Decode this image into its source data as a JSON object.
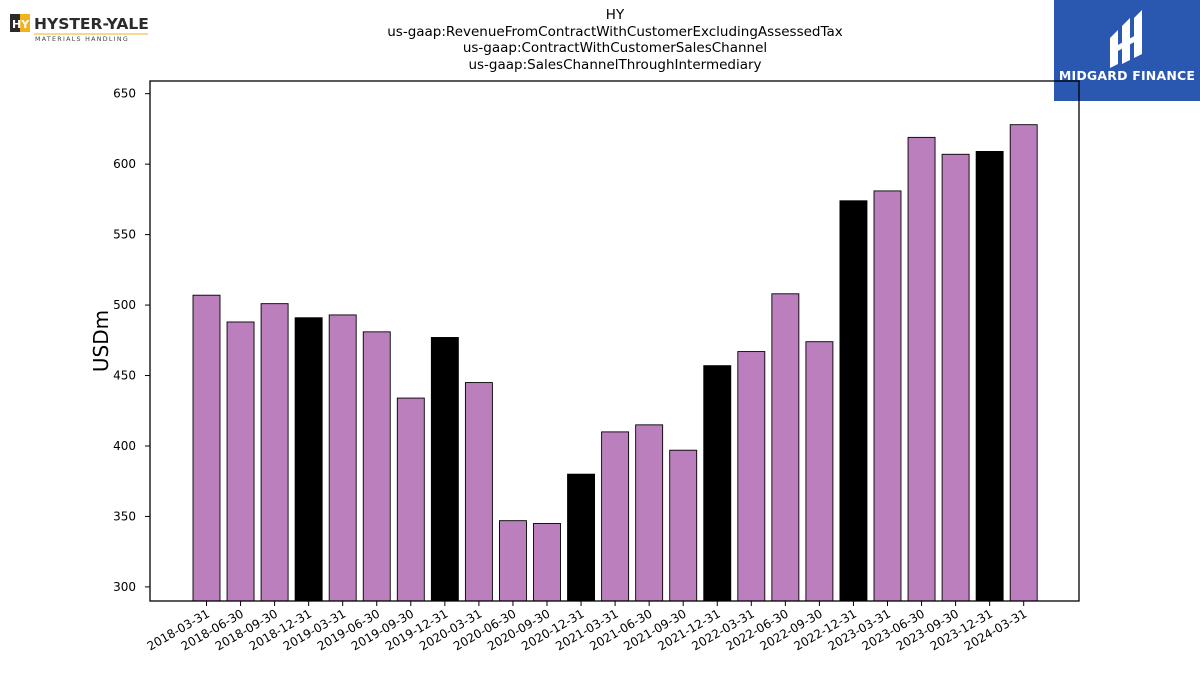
{
  "logos": {
    "left_brand": "HYSTER-YALE",
    "left_sub": "MATERIALS HANDLING",
    "left_mark": "HY",
    "right_brand": "MIDGARD FINANCE",
    "right_bg": "#2a58b0"
  },
  "titles": {
    "line1": "HY",
    "line2": "us-gaap:RevenueFromContractWithCustomerExcludingAssessedTax",
    "line3": "us-gaap:ContractWithCustomerSalesChannel",
    "line4": "us-gaap:SalesChannelThroughIntermediary"
  },
  "chart_data": {
    "type": "bar",
    "ylabel": "USDm",
    "xlabel": "",
    "ylim": [
      290,
      659
    ],
    "yticks": [
      300,
      350,
      400,
      450,
      500,
      550,
      600,
      650
    ],
    "grid": false,
    "colors": {
      "quarter": "#bb7fbd",
      "year_end": "#000000"
    },
    "categories": [
      "2018-03-31",
      "2018-06-30",
      "2018-09-30",
      "2018-12-31",
      "2019-03-31",
      "2019-06-30",
      "2019-09-30",
      "2019-12-31",
      "2020-03-31",
      "2020-06-30",
      "2020-09-30",
      "2020-12-31",
      "2021-03-31",
      "2021-06-30",
      "2021-09-30",
      "2021-12-31",
      "2022-03-31",
      "2022-06-30",
      "2022-09-30",
      "2022-12-31",
      "2023-03-31",
      "2023-06-30",
      "2023-09-30",
      "2023-12-31",
      "2024-03-31"
    ],
    "values": [
      507,
      488,
      501,
      491,
      493,
      481,
      434,
      477,
      445,
      347,
      345,
      380,
      410,
      415,
      397,
      457,
      467,
      508,
      474,
      574,
      581,
      619,
      607,
      609,
      628
    ],
    "year_end": [
      false,
      false,
      false,
      true,
      false,
      false,
      false,
      true,
      false,
      false,
      false,
      true,
      false,
      false,
      false,
      true,
      false,
      false,
      false,
      true,
      false,
      false,
      false,
      true,
      false
    ]
  }
}
